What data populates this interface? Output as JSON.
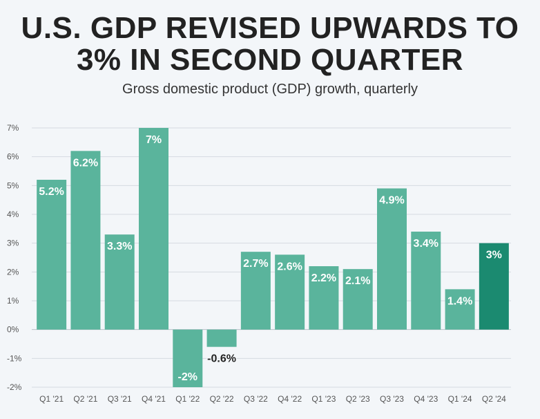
{
  "title": "U.S. GDP REVISED UPWARDS TO 3% IN SECOND QUARTER",
  "subtitle": "Gross domestic product (GDP) growth, quarterly",
  "colors": {
    "bar": "#5ab49c",
    "highlight": "#1b8a70",
    "grid": "#d5dbe1",
    "negative_label": "#222222"
  },
  "chart_data": {
    "type": "bar",
    "title": "U.S. GDP REVISED UPWARDS TO 3% IN SECOND QUARTER",
    "subtitle": "Gross domestic product (GDP) growth, quarterly",
    "categories": [
      "Q1 '21",
      "Q2 '21",
      "Q3 '21",
      "Q4 '21",
      "Q1 '22",
      "Q2 '22",
      "Q3 '22",
      "Q4 '22",
      "Q1 '23",
      "Q2 '23",
      "Q3 '23",
      "Q4 '23",
      "Q1 '24",
      "Q2 '24"
    ],
    "values": [
      5.2,
      6.2,
      3.3,
      7,
      -2,
      -0.6,
      2.7,
      2.6,
      2.2,
      2.1,
      4.9,
      3.4,
      1.4,
      3
    ],
    "data_labels": [
      "5.2%",
      "6.2%",
      "3.3%",
      "7%",
      "-2%",
      "-0.6%",
      "2.7%",
      "2.6%",
      "2.2%",
      "2.1%",
      "4.9%",
      "3.4%",
      "1.4%",
      "3%"
    ],
    "y_ticks": [
      "-2%",
      "-1%",
      "0%",
      "1%",
      "2%",
      "3%",
      "4%",
      "5%",
      "6%",
      "7%"
    ],
    "ylim": [
      -2,
      7
    ],
    "grid": true,
    "highlight_category": "Q2 '24"
  }
}
